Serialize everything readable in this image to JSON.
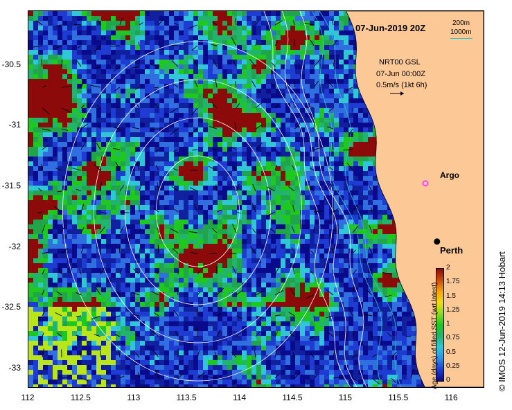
{
  "title": "07-Jun-2019 20Z",
  "depth_legend": {
    "line1": "200m",
    "line2": "1000m",
    "color2": "#2ec4c4"
  },
  "current_legend": {
    "line1": "NRT00 GSL",
    "line2": "07-Jun 00:00Z",
    "line3": "0.5m/s (1kt 6h)"
  },
  "places": {
    "argo": "Argo",
    "perth": "Perth"
  },
  "credit": "© IMOS 12-Jun-2019 14:13 Hobart",
  "colorbar": {
    "label": "Age (days) of filled SST (wrt latest)",
    "ticks": [
      "2",
      "1.75",
      "1.5",
      "1.25",
      "1",
      "0.75",
      "0.5",
      "0.25",
      "0"
    ],
    "colors": [
      "#0a0a8c",
      "#1e3cd2",
      "#2f8fe8",
      "#2fc7d8",
      "#22b46e",
      "#1ec81e",
      "#8cdc1e",
      "#f0dc14",
      "#f5a00a",
      "#c84b0a",
      "#8c0a0a"
    ]
  },
  "colors": {
    "land": "#fbc896",
    "argo_marker": "#ff44ff"
  },
  "chart_data": {
    "type": "heatmap",
    "xlabel": "",
    "ylabel": "",
    "xlim": [
      112,
      116.3
    ],
    "ylim": [
      -33.15,
      -30.05
    ],
    "x_ticks": [
      "112",
      "112.5",
      "113",
      "113.5",
      "114",
      "114.5",
      "115",
      "115.5",
      "116"
    ],
    "y_ticks": [
      "-30.5",
      "-31",
      "-31.5",
      "-32",
      "-32.5",
      "-33"
    ],
    "markers": [
      {
        "name": "Argo",
        "lon": 115.75,
        "lat": -31.47
      },
      {
        "name": "Perth",
        "lon": 115.86,
        "lat": -31.95
      }
    ]
  }
}
